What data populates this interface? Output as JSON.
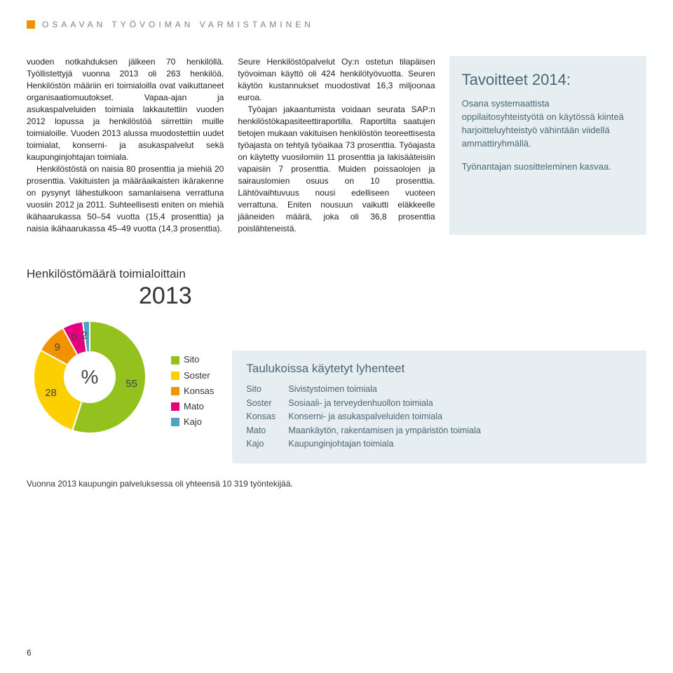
{
  "section": {
    "title": "OSAAVAN TYÖVOIMAN VARMISTAMINEN",
    "marker_color": "#f29200"
  },
  "body": {
    "col1_p1": "vuoden notkahduksen jälkeen 70 henkilöllä. Työllistettyjä vuonna 2013 oli 263 henkilöä. Henkilöstön määriin eri toimialoilla ovat vaikuttaneet organisaatiomuutokset. Vapaa-ajan ja asukaspalveluiden toimiala lakkautettiin vuoden 2012 lopussa ja henkilöstöä siirrettiin muille toimialoille. Vuoden 2013 alussa muodostettiin uudet toimialat, konserni- ja asukaspalvelut sekä kaupunginjohtajan toimiala.",
    "col1_p2": "Henkilöstöstä on naisia 80 prosenttia ja miehiä 20 prosenttia. Vakituisten ja määräaikaisten ikärakenne on pysynyt lähestulkoon samanlaisena verrattuna vuosiin 2012 ja 2011. Suhteellisesti eniten on miehiä ikähaarukassa 50–54 vuotta (15,4 prosenttia) ja naisia ikähaarukassa 45–49 vuotta (14,3 prosenttia).",
    "col2_p1": "Seure Henkilöstöpalvelut Oy:n ostetun tilapäisen työvoiman käyttö oli 424 henkilötyövuotta. Seuren käytön kustannukset muodostivat 16,3 miljoonaa euroa.",
    "col2_p2": "Työajan jakaantumista voidaan seurata SAP:n henkilöstökapasiteettiraportilla. Raportilta saatujen tietojen mukaan vakituisen henkilöstön teoreettisesta työajasta on tehtyä työaikaa 73 prosenttia. Työajasta on käytetty vuosilomiin 11 prosenttia ja lakisääteisiin vapaisiin 7 prosenttia. Muiden poissaolojen ja sairauslomien osuus on 10 prosenttia. Lähtövaihtuvuus nousi edelliseen vuoteen verrattuna. Eniten nousuun vaikutti eläkkeelle jääneiden määrä, joka oli 36,8 prosenttia poislähteneistä."
  },
  "sidebar": {
    "title": "Tavoitteet 2014:",
    "p1": "Osana systemaattista oppilaitosyhteistyötä on käytössä kiinteä harjoitteluyhteistyö vähintään viidellä ammattiryhmällä.",
    "p2": "Työnantajan suositteleminen kasvaa.",
    "bg_color": "#e6eef1",
    "text_color": "#4a6673"
  },
  "chart": {
    "section_title": "Henkilöstömäärä toimialoittain",
    "year": "2013",
    "type": "donut",
    "center_label": "%",
    "inner_radius": 36,
    "outer_radius": 80,
    "slices": [
      {
        "label": "Sito",
        "value": 55,
        "color": "#95c11f"
      },
      {
        "label": "Soster",
        "value": 28,
        "color": "#fccf00"
      },
      {
        "label": "Konsas",
        "value": 9,
        "color": "#f29200"
      },
      {
        "label": "Mato",
        "value": 6,
        "color": "#e5007d"
      },
      {
        "label": "Kajo",
        "value": 2,
        "color": "#4ca3c3"
      }
    ],
    "footnote": "Vuonna 2013 kaupungin palveluksessa oli yhteensä 10 319 työntekijää."
  },
  "abbrev": {
    "title": "Taulukoissa käytetyt lyhenteet",
    "rows": [
      {
        "key": "Sito",
        "val": "Sivistystoimen toimiala"
      },
      {
        "key": "Soster",
        "val": "Sosiaali- ja terveydenhuollon toimiala"
      },
      {
        "key": "Konsas",
        "val": "Konserni- ja asukaspalveluiden toimiala"
      },
      {
        "key": "Mato",
        "val": "Maankäytön, rakentamisen ja ympäristön toimiala"
      },
      {
        "key": "Kajo",
        "val": "Kaupunginjohtajan toimiala"
      }
    ]
  },
  "page_number": "6"
}
